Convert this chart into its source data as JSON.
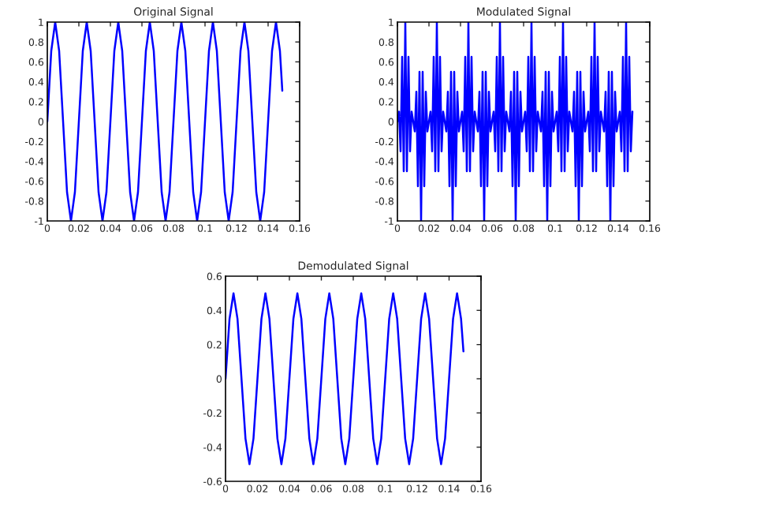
{
  "chart_data": [
    {
      "type": "line",
      "title": "Original Signal",
      "xlim": [
        0,
        0.16
      ],
      "ylim": [
        -1,
        1
      ],
      "xticks": [
        0,
        0.02,
        0.04,
        0.06,
        0.08,
        0.1,
        0.12,
        0.14,
        0.16
      ],
      "yticks": [
        -1,
        -0.8,
        -0.6,
        -0.4,
        -0.2,
        0,
        0.2,
        0.4,
        0.6,
        0.8,
        1
      ],
      "x": [
        0,
        0.0025,
        0.005,
        0.0075,
        0.01,
        0.0125,
        0.015,
        0.0175,
        0.02,
        0.0225,
        0.025,
        0.0275,
        0.03,
        0.0325,
        0.035,
        0.0375,
        0.04,
        0.0425,
        0.045,
        0.0475,
        0.05,
        0.0525,
        0.055,
        0.0575,
        0.06,
        0.0625,
        0.065,
        0.0675,
        0.07,
        0.0725,
        0.075,
        0.0775,
        0.08,
        0.0825,
        0.085,
        0.0875,
        0.09,
        0.0925,
        0.095,
        0.0975,
        0.1,
        0.1025,
        0.105,
        0.1075,
        0.11,
        0.1125,
        0.115,
        0.1175,
        0.12,
        0.1225,
        0.125,
        0.1275,
        0.13,
        0.1325,
        0.135,
        0.1375,
        0.14,
        0.1425,
        0.145,
        0.1475,
        0.149
      ],
      "series": [
        {
          "color": "#0000ff",
          "values": [
            0,
            0.71,
            1,
            0.71,
            0,
            -0.71,
            -1,
            -0.71,
            0,
            0.71,
            1,
            0.71,
            0,
            -0.71,
            -1,
            -0.71,
            0,
            0.71,
            1,
            0.71,
            0,
            -0.71,
            -1,
            -0.71,
            0,
            0.71,
            1,
            0.71,
            0,
            -0.71,
            -1,
            -0.71,
            0,
            0.71,
            1,
            0.71,
            0,
            -0.71,
            -1,
            -0.71,
            0,
            0.71,
            1,
            0.71,
            0,
            -0.71,
            -1,
            -0.71,
            0,
            0.71,
            1,
            0.71,
            0,
            -0.71,
            -1,
            -0.71,
            0,
            0.71,
            1,
            0.71,
            0.31
          ]
        }
      ]
    },
    {
      "type": "line",
      "title": "Modulated Signal",
      "xlim": [
        0,
        0.16
      ],
      "ylim": [
        -1,
        1
      ],
      "xticks": [
        0,
        0.02,
        0.04,
        0.06,
        0.08,
        0.1,
        0.12,
        0.14,
        0.16
      ],
      "yticks": [
        -1,
        -0.8,
        -0.6,
        -0.4,
        -0.2,
        0,
        0.2,
        0.4,
        0.6,
        0.8,
        1
      ],
      "x": [
        0,
        0.001,
        0.002,
        0.003,
        0.004,
        0.005,
        0.006,
        0.007,
        0.008,
        0.009,
        0.01,
        0.011,
        0.012,
        0.013,
        0.014,
        0.015,
        0.016,
        0.017,
        0.018,
        0.019,
        0.02,
        0.021,
        0.022,
        0.023,
        0.024,
        0.025,
        0.026,
        0.027,
        0.028,
        0.029,
        0.03,
        0.031,
        0.032,
        0.033,
        0.034,
        0.035,
        0.036,
        0.037,
        0.038,
        0.039,
        0.04,
        0.041,
        0.042,
        0.043,
        0.044,
        0.045,
        0.046,
        0.047,
        0.048,
        0.049,
        0.05,
        0.051,
        0.052,
        0.053,
        0.054,
        0.055,
        0.056,
        0.057,
        0.058,
        0.059,
        0.06,
        0.061,
        0.062,
        0.063,
        0.064,
        0.065,
        0.066,
        0.067,
        0.068,
        0.069,
        0.07,
        0.071,
        0.072,
        0.073,
        0.074,
        0.075,
        0.076,
        0.077,
        0.078,
        0.079,
        0.08,
        0.081,
        0.082,
        0.083,
        0.084,
        0.085,
        0.086,
        0.087,
        0.088,
        0.089,
        0.09,
        0.091,
        0.092,
        0.093,
        0.094,
        0.095,
        0.096,
        0.097,
        0.098,
        0.099,
        0.1,
        0.101,
        0.102,
        0.103,
        0.104,
        0.105,
        0.106,
        0.107,
        0.108,
        0.109,
        0.11,
        0.111,
        0.112,
        0.113,
        0.114,
        0.115,
        0.116,
        0.117,
        0.118,
        0.119,
        0.12,
        0.121,
        0.122,
        0.123,
        0.124,
        0.125,
        0.126,
        0.127,
        0.128,
        0.129,
        0.13,
        0.131,
        0.132,
        0.133,
        0.134,
        0.135,
        0.136,
        0.137,
        0.138,
        0.139,
        0.14,
        0.141,
        0.142,
        0.143,
        0.144,
        0.145,
        0.146,
        0.147,
        0.148,
        0.149
      ],
      "series": [
        {
          "color": "#0000ff",
          "values": [
            0,
            0.1,
            -0.3,
            0.65,
            -0.5,
            1,
            -0.5,
            0.65,
            -0.3,
            0.1,
            0,
            -0.1,
            0.3,
            -0.65,
            0.5,
            -1,
            0.5,
            -0.65,
            0.3,
            -0.1,
            0,
            0.1,
            -0.3,
            0.65,
            -0.5,
            1,
            -0.5,
            0.65,
            -0.3,
            0.1,
            0,
            -0.1,
            0.3,
            -0.65,
            0.5,
            -1,
            0.5,
            -0.65,
            0.3,
            -0.1,
            0,
            0.1,
            -0.3,
            0.65,
            -0.5,
            1,
            -0.5,
            0.65,
            -0.3,
            0.1,
            0,
            -0.1,
            0.3,
            -0.65,
            0.5,
            -1,
            0.5,
            -0.65,
            0.3,
            -0.1,
            0,
            0.1,
            -0.3,
            0.65,
            -0.5,
            1,
            -0.5,
            0.65,
            -0.3,
            0.1,
            0,
            -0.1,
            0.3,
            -0.65,
            0.5,
            -1,
            0.5,
            -0.65,
            0.3,
            -0.1,
            0,
            0.1,
            -0.3,
            0.65,
            -0.5,
            1,
            -0.5,
            0.65,
            -0.3,
            0.1,
            0,
            -0.1,
            0.3,
            -0.65,
            0.5,
            -1,
            0.5,
            -0.65,
            0.3,
            -0.1,
            0,
            0.1,
            -0.3,
            0.65,
            -0.5,
            1,
            -0.5,
            0.65,
            -0.3,
            0.1,
            0,
            -0.1,
            0.3,
            -0.65,
            0.5,
            -1,
            0.5,
            -0.65,
            0.3,
            -0.1,
            0,
            0.1,
            -0.3,
            0.65,
            -0.5,
            1,
            -0.5,
            0.65,
            -0.3,
            0.1,
            0,
            -0.1,
            0.3,
            -0.65,
            0.5,
            -1,
            0.5,
            -0.65,
            0.3,
            -0.1,
            0,
            0.1,
            -0.3,
            0.65,
            -0.5,
            1,
            -0.5,
            0.65,
            -0.3,
            0.1
          ]
        }
      ]
    },
    {
      "type": "line",
      "title": "Demodulated Signal",
      "xlim": [
        0,
        0.16
      ],
      "ylim": [
        -0.6,
        0.6
      ],
      "xticks": [
        0,
        0.02,
        0.04,
        0.06,
        0.08,
        0.1,
        0.12,
        0.14,
        0.16
      ],
      "yticks": [
        -0.6,
        -0.4,
        -0.2,
        0,
        0.2,
        0.4,
        0.6
      ],
      "x": [
        0,
        0.0025,
        0.005,
        0.0075,
        0.01,
        0.0125,
        0.015,
        0.0175,
        0.02,
        0.0225,
        0.025,
        0.0275,
        0.03,
        0.0325,
        0.035,
        0.0375,
        0.04,
        0.0425,
        0.045,
        0.0475,
        0.05,
        0.0525,
        0.055,
        0.0575,
        0.06,
        0.0625,
        0.065,
        0.0675,
        0.07,
        0.0725,
        0.075,
        0.0775,
        0.08,
        0.0825,
        0.085,
        0.0875,
        0.09,
        0.0925,
        0.095,
        0.0975,
        0.1,
        0.1025,
        0.105,
        0.1075,
        0.11,
        0.1125,
        0.115,
        0.1175,
        0.12,
        0.1225,
        0.125,
        0.1275,
        0.13,
        0.1325,
        0.135,
        0.1375,
        0.14,
        0.1425,
        0.145,
        0.1475,
        0.149
      ],
      "series": [
        {
          "color": "#0000ff",
          "values": [
            0,
            0.35,
            0.5,
            0.35,
            0,
            -0.35,
            -0.5,
            -0.35,
            0,
            0.35,
            0.5,
            0.35,
            0,
            -0.35,
            -0.5,
            -0.35,
            0,
            0.35,
            0.5,
            0.35,
            0,
            -0.35,
            -0.5,
            -0.35,
            0,
            0.35,
            0.5,
            0.35,
            0,
            -0.35,
            -0.5,
            -0.35,
            0,
            0.35,
            0.5,
            0.35,
            0,
            -0.35,
            -0.5,
            -0.35,
            0,
            0.35,
            0.5,
            0.35,
            0,
            -0.35,
            -0.5,
            -0.35,
            0,
            0.35,
            0.5,
            0.35,
            0,
            -0.35,
            -0.5,
            -0.35,
            0,
            0.35,
            0.5,
            0.35,
            0.16
          ]
        }
      ]
    }
  ]
}
